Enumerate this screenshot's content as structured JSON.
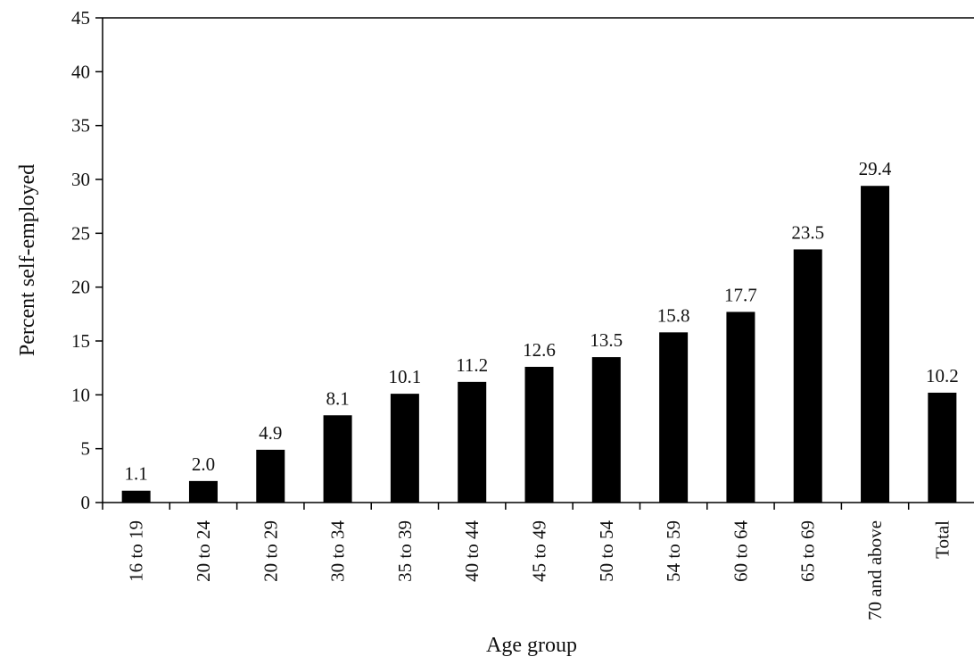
{
  "chart_data": {
    "type": "bar",
    "xlabel": "Age group",
    "ylabel": "Percent self-employed",
    "ylim": [
      0,
      45
    ],
    "yticks": [
      "0",
      "5",
      "10",
      "15",
      "20",
      "25",
      "30",
      "35",
      "40",
      "45"
    ],
    "categories": [
      "16 to 19",
      "20 to 24",
      "20 to 29",
      "30 to 34",
      "35 to 39",
      "40 to 44",
      "45 to 49",
      "50 to 54",
      "54 to 59",
      "60 to 64",
      "65 to 69",
      "70 and above",
      "Total"
    ],
    "values": [
      1.1,
      2.0,
      4.9,
      8.1,
      10.1,
      11.2,
      12.6,
      13.5,
      15.8,
      17.7,
      23.5,
      29.4,
      10.2
    ],
    "value_labels": [
      "1.1",
      "2.0",
      "4.9",
      "8.1",
      "10.1",
      "11.2",
      "12.6",
      "13.5",
      "15.8",
      "17.7",
      "23.5",
      "29.4",
      "10.2"
    ],
    "bar_color": "#000000",
    "grid": false,
    "legend": "none"
  }
}
